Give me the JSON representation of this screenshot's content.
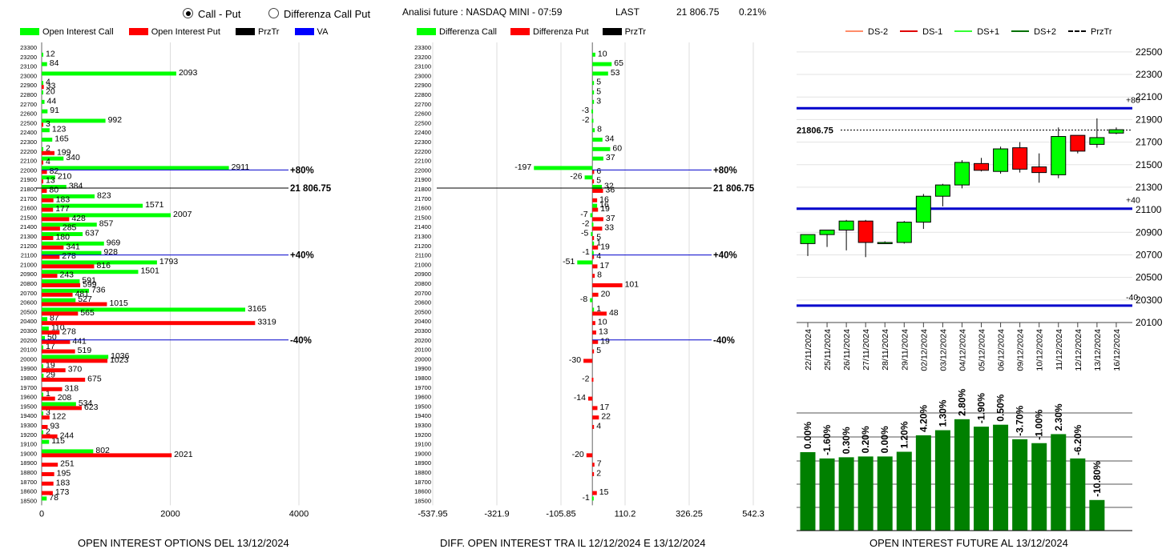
{
  "header": {
    "radio_call_put": "Call - Put",
    "radio_diff": "Differenza Call Put",
    "analysis": "Analisi future : NASDAQ MINI - 07:59",
    "last_label": "LAST",
    "last_value": "21 806.75",
    "change": "0.21%"
  },
  "legend1": {
    "call": "Open Interest Call",
    "put": "Open Interest Put",
    "przt": "PrzTr",
    "va": "VA"
  },
  "legend2": {
    "call": "Differenza Call",
    "put": "Differenza Put",
    "przt": "PrzTr"
  },
  "legend3": {
    "ds_minus2": "DS-2",
    "ds_minus1": "DS-1",
    "ds_plus1": "DS+1",
    "ds_plus2": "DS+2",
    "przt": "PrzTr"
  },
  "footers": {
    "oi": "OPEN INTEREST OPTIONS DEL 13/12/2024",
    "diff": "DIFF. OPEN INTEREST TRA IL 12/12/2024 E 13/12/2024",
    "fut": "OPEN INTEREST FUTURE AL 13/12/2024"
  },
  "colors": {
    "call": "#00ff00",
    "put": "#ff0000",
    "line": "#0000cc",
    "up": "#00ff00",
    "down": "#ff0000",
    "fut_bar": "#008000"
  },
  "chart_data": [
    {
      "type": "bar",
      "orientation": "horizontal",
      "title": "OPEN INTEREST OPTIONS DEL 13/12/2024",
      "strikes": [
        23300,
        23200,
        23100,
        23000,
        22900,
        22800,
        22700,
        22600,
        22500,
        22400,
        22300,
        22200,
        22100,
        22000,
        21900,
        21800,
        21700,
        21600,
        21500,
        21400,
        21300,
        21200,
        21100,
        21000,
        20900,
        20800,
        20700,
        20600,
        20500,
        20400,
        20300,
        20200,
        20100,
        20000,
        19900,
        19800,
        19700,
        19600,
        19500,
        19400,
        19300,
        19200,
        19100,
        19000,
        18900,
        18800,
        18700,
        18600,
        18500
      ],
      "series": [
        {
          "name": "Open Interest Call",
          "values": [
            null,
            12,
            84,
            2093,
            4,
            20,
            44,
            91,
            992,
            123,
            165,
            2,
            340,
            2911,
            210,
            384,
            823,
            1571,
            2007,
            857,
            637,
            969,
            928,
            1793,
            1501,
            591,
            736,
            527,
            3165,
            87,
            110,
            50,
            17,
            1036,
            19,
            29,
            null,
            1,
            534,
            3,
            null,
            2,
            115,
            802,
            null,
            null,
            null,
            null,
            78
          ]
        },
        {
          "name": "Open Interest Put",
          "values": [
            null,
            null,
            null,
            null,
            33,
            null,
            null,
            null,
            3,
            null,
            null,
            199,
            4,
            82,
            13,
            80,
            183,
            177,
            428,
            285,
            180,
            341,
            278,
            816,
            243,
            599,
            481,
            1015,
            565,
            3319,
            278,
            441,
            519,
            1023,
            370,
            675,
            318,
            208,
            623,
            122,
            93,
            244,
            null,
            2021,
            251,
            195,
            183,
            173,
            null
          ]
        }
      ],
      "levels": [
        {
          "label": "+80%",
          "strike": 22000
        },
        {
          "label": "21 806.75",
          "strike": 21800
        },
        {
          "label": "+40%",
          "strike": 21100
        },
        {
          "label": "-40%",
          "strike": 20200
        }
      ],
      "xticks": [
        0,
        2000,
        4000
      ],
      "xlim": [
        0,
        4000
      ]
    },
    {
      "type": "bar",
      "orientation": "horizontal",
      "title": "DIFF. OPEN INTEREST TRA IL 12/12/2024 E 13/12/2024",
      "strikes": [
        23300,
        23200,
        23100,
        23000,
        22900,
        22800,
        22700,
        22600,
        22500,
        22400,
        22300,
        22200,
        22100,
        22000,
        21900,
        21800,
        21700,
        21600,
        21500,
        21400,
        21300,
        21200,
        21100,
        21000,
        20900,
        20800,
        20700,
        20600,
        20500,
        20400,
        20300,
        20200,
        20100,
        20000,
        19900,
        19800,
        19700,
        19600,
        19500,
        19400,
        19300,
        19200,
        19100,
        19000,
        18900,
        18800,
        18700,
        18600,
        18500
      ],
      "series": [
        {
          "name": "Differenza Call",
          "values": [
            null,
            10,
            65,
            53,
            5,
            5,
            3,
            -3,
            -2,
            8,
            34,
            60,
            37,
            -197,
            -26,
            32,
            null,
            16,
            -7,
            -2,
            -5,
            1,
            -1,
            -51,
            null,
            null,
            null,
            -8,
            1,
            null,
            null,
            null,
            null,
            null,
            null,
            null,
            null,
            null,
            null,
            null,
            null,
            null,
            null,
            null,
            null,
            null,
            null,
            null,
            -1
          ]
        },
        {
          "name": "Differenza Put",
          "values": [
            null,
            null,
            null,
            null,
            null,
            null,
            null,
            null,
            null,
            null,
            null,
            null,
            null,
            6,
            5,
            36,
            16,
            19,
            37,
            33,
            5,
            19,
            4,
            17,
            8,
            101,
            20,
            null,
            48,
            10,
            13,
            19,
            5,
            -30,
            null,
            -2,
            null,
            -14,
            17,
            22,
            4,
            null,
            null,
            -20,
            7,
            2,
            null,
            15,
            null
          ]
        }
      ],
      "levels": [
        {
          "label": "+80%",
          "strike": 22000
        },
        {
          "label": "21 806.75",
          "strike": 21800
        },
        {
          "label": "+40%",
          "strike": 21100
        },
        {
          "label": "-40%",
          "strike": 20200
        }
      ],
      "xticks": [
        -537.95,
        -321.9,
        -105.85,
        110.2,
        326.25,
        542.3
      ],
      "xlim": [
        -537.95,
        542.3
      ]
    },
    {
      "type": "candlestick",
      "categories": [
        "22/11/2024",
        "25/11/2024",
        "26/11/2024",
        "27/11/2024",
        "28/11/2024",
        "29/11/2024",
        "02/12/2024",
        "03/12/2024",
        "04/12/2024",
        "05/12/2024",
        "06/12/2024",
        "09/12/2024",
        "10/12/2024",
        "11/12/2024",
        "12/12/2024",
        "13/12/2024",
        "16/12/2024"
      ],
      "ohlc": [
        [
          20800,
          20880,
          20690,
          20880
        ],
        [
          20880,
          20920,
          20770,
          20920
        ],
        [
          20920,
          21010,
          20740,
          21000
        ],
        [
          21000,
          21010,
          20680,
          20810
        ],
        [
          20810,
          20820,
          20810,
          20810
        ],
        [
          20810,
          21000,
          20800,
          20990
        ],
        [
          20990,
          21240,
          20930,
          21220
        ],
        [
          21220,
          21330,
          21130,
          21320
        ],
        [
          21320,
          21540,
          21290,
          21520
        ],
        [
          21510,
          21560,
          21440,
          21450
        ],
        [
          21440,
          21660,
          21420,
          21640
        ],
        [
          21650,
          21700,
          21430,
          21460
        ],
        [
          21480,
          21600,
          21340,
          21430
        ],
        [
          21410,
          21830,
          21380,
          21750
        ],
        [
          21760,
          21760,
          21600,
          21620
        ],
        [
          21680,
          21910,
          21650,
          21740
        ],
        [
          21780,
          21830,
          21770,
          21810
        ]
      ],
      "last": 21806.75,
      "last_label": "21806.75",
      "levels": [
        {
          "label": "+80",
          "value": 22000
        },
        {
          "label": "+40",
          "value": 21110
        },
        {
          "label": "-40",
          "value": 20250
        }
      ],
      "yticks": [
        20100,
        20300,
        20500,
        20700,
        20900,
        21100,
        21300,
        21500,
        21700,
        21900,
        22100,
        22300,
        22500
      ],
      "ylim": [
        20100,
        22570
      ]
    },
    {
      "type": "bar",
      "title": "OPEN INTEREST FUTURE AL 13/12/2024",
      "categories": [
        "22/11/2024",
        "25/11/2024",
        "26/11/2024",
        "27/11/2024",
        "28/11/2024",
        "29/11/2024",
        "02/12/2024",
        "03/12/2024",
        "04/12/2024",
        "05/12/2024",
        "06/12/2024",
        "09/12/2024",
        "10/12/2024",
        "11/12/2024",
        "12/12/2024",
        "13/12/2024",
        "16/12/2024"
      ],
      "labels": [
        "0.00%",
        "-1.60%",
        "0.30%",
        "0.20%",
        "0.00%",
        "1.20%",
        "4.20%",
        "1.30%",
        "2.80%",
        "-1.90%",
        "0.50%",
        "-3.70%",
        "-1.00%",
        "2.30%",
        "-6.20%",
        "-10.80%",
        ""
      ],
      "values": [
        100,
        98.4,
        98.7,
        98.9,
        98.9,
        100.1,
        104.3,
        105.6,
        108.4,
        106.5,
        107.0,
        103.3,
        102.3,
        104.6,
        98.4,
        87.8,
        null
      ]
    }
  ]
}
